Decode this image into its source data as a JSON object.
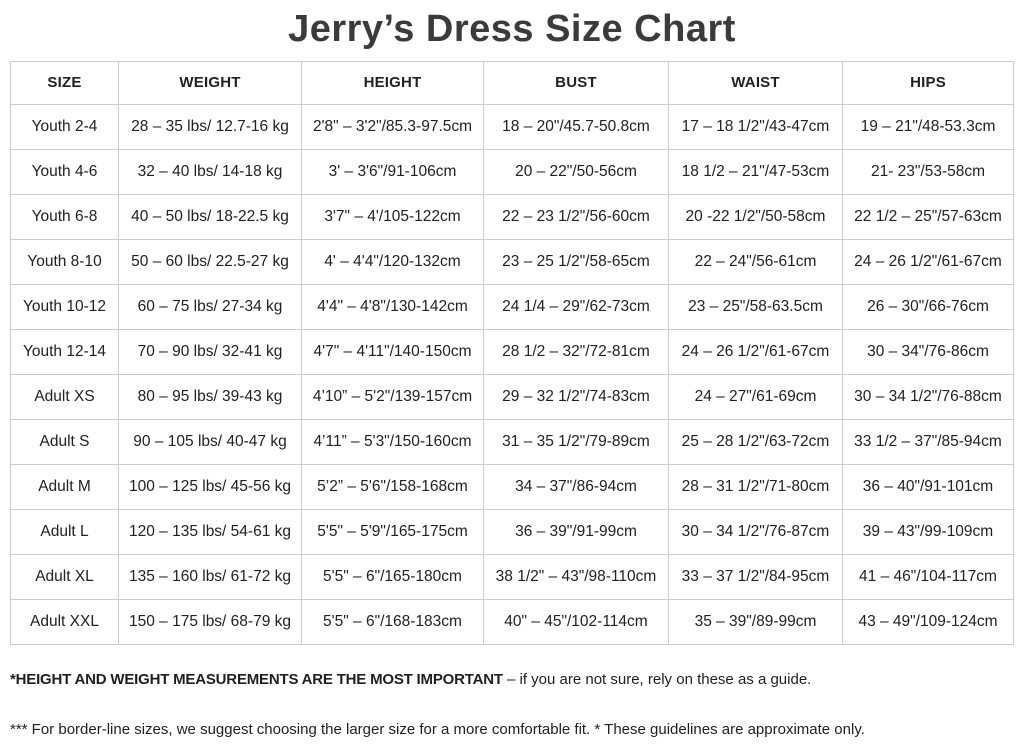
{
  "title": "Jerry’s Dress Size Chart",
  "colors": {
    "background": "#ffffff",
    "title_text": "#3b3b3b",
    "cell_text": "#202124",
    "border": "#cccccc"
  },
  "table": {
    "columns": [
      "SIZE",
      "WEIGHT",
      "HEIGHT",
      "BUST",
      "WAIST",
      "HIPS"
    ],
    "rows": [
      [
        "Youth 2-4",
        "28 – 35 lbs/ 12.7-16 kg",
        "2'8\" – 3'2\"/85.3-97.5cm",
        "18 – 20\"/45.7-50.8cm",
        "17 – 18 1/2\"/43-47cm",
        "19 – 21\"/48-53.3cm"
      ],
      [
        "Youth 4-6",
        "32 – 40 lbs/ 14-18 kg",
        "3' – 3'6\"/91-106cm",
        "20 – 22\"/50-56cm",
        "18 1/2 – 21\"/47-53cm",
        "21- 23\"/53-58cm"
      ],
      [
        "Youth 6-8",
        "40 – 50 lbs/ 18-22.5 kg",
        "3'7\" – 4'/105-122cm",
        "22 – 23 1/2\"/56-60cm",
        "20 -22 1/2\"/50-58cm",
        "22 1/2 – 25\"/57-63cm"
      ],
      [
        "Youth 8-10",
        "50 – 60 lbs/ 22.5-27 kg",
        "4' – 4'4\"/120-132cm",
        "23 – 25 1/2\"/58-65cm",
        "22 – 24\"/56-61cm",
        "24 – 26 1/2\"/61-67cm"
      ],
      [
        "Youth 10-12",
        "60 – 75 lbs/ 27-34 kg",
        "4'4\" – 4'8\"/130-142cm",
        "24 1/4 – 29\"/62-73cm",
        "23 – 25\"/58-63.5cm",
        "26 – 30\"/66-76cm"
      ],
      [
        "Youth 12-14",
        "70 – 90 lbs/ 32-41 kg",
        "4'7\" – 4'11\"/140-150cm",
        "28 1/2 – 32\"/72-81cm",
        "24 – 26 1/2\"/61-67cm",
        "30 – 34\"/76-86cm"
      ],
      [
        "Adult XS",
        "80 – 95 lbs/ 39-43 kg",
        "4’10” – 5'2\"/139-157cm",
        "29 – 32 1/2\"/74-83cm",
        "24 – 27\"/61-69cm",
        "30 – 34 1/2\"/76-88cm"
      ],
      [
        "Adult S",
        "90 – 105 lbs/ 40-47 kg",
        "4’11” – 5'3\"/150-160cm",
        "31 – 35 1/2\"/79-89cm",
        "25 – 28 1/2\"/63-72cm",
        "33 1/2 – 37\"/85-94cm"
      ],
      [
        "Adult M",
        "100 – 125 lbs/ 45-56 kg",
        "5’2” – 5'6\"/158-168cm",
        "34 – 37\"/86-94cm",
        "28 – 31 1/2\"/71-80cm",
        "36 – 40\"/91-101cm"
      ],
      [
        "Adult L",
        "120 – 135 lbs/ 54-61 kg",
        "5'5\" – 5'9\"/165-175cm",
        "36 – 39\"/91-99cm",
        "30 – 34 1/2\"/76-87cm",
        "39 – 43\"/99-109cm"
      ],
      [
        "Adult XL",
        "135 – 160 lbs/ 61-72 kg",
        "5'5\" – 6\"/165-180cm",
        "38 1/2\" – 43\"/98-110cm",
        "33 – 37 1/2\"/84-95cm",
        "41 – 46\"/104-117cm"
      ],
      [
        "Adult XXL",
        "150 – 175 lbs/ 68-79 kg",
        "5'5\" – 6\"/168-183cm",
        "40\" – 45\"/102-114cm",
        "35 – 39\"/89-99cm",
        "43 – 49\"/109-124cm"
      ]
    ]
  },
  "footnotes": {
    "line1_bold": "*HEIGHT AND WEIGHT MEASUREMENTS ARE THE MOST IMPORTANT",
    "line1_rest": " – if you are not sure, rely on these as a guide.",
    "line2": "*** For border-line sizes, we suggest choosing the larger size for a more comfortable fit. * These guidelines are approximate only."
  }
}
